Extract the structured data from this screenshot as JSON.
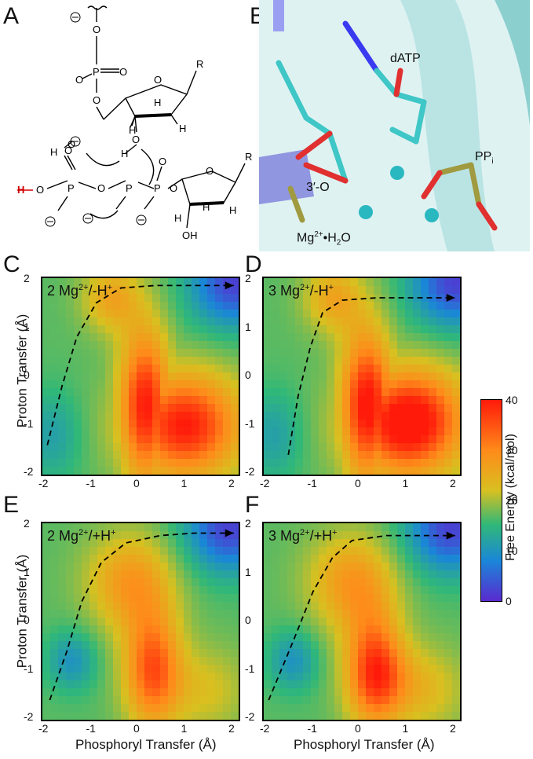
{
  "panels": {
    "A": {
      "letter": "A"
    },
    "B": {
      "letter": "B",
      "labels": {
        "datp": "dATP",
        "ppi": "PP",
        "ppi_sub": "i",
        "o3": "3′-O",
        "mg_water": "Mg",
        "mg_sup": "2+",
        "mg_tail": "•H",
        "mg_sub": "2",
        "mg_end": "O"
      }
    },
    "C": {
      "letter": "C",
      "title": "2 Mg",
      "title_sup": "2+",
      "title_tail": "/-H",
      "title_sup2": "+"
    },
    "D": {
      "letter": "D",
      "title": "3 Mg",
      "title_sup": "2+",
      "title_tail": "/-H",
      "title_sup2": "+"
    },
    "E": {
      "letter": "E",
      "title": "2 Mg",
      "title_sup": "2+",
      "title_tail": "/+H",
      "title_sup2": "+"
    },
    "F": {
      "letter": "F",
      "title": "3 Mg",
      "title_sup": "2+",
      "title_tail": "/+H",
      "title_sup2": "+"
    }
  },
  "axes": {
    "ylabel": "Proton Transfer (Å)",
    "xlabel": "Phosphoryl Transfer (Å)",
    "yticks": [
      "2",
      "1",
      "0",
      "-1",
      "-2"
    ],
    "xticks": [
      "-2",
      "-1",
      "0",
      "1",
      "2"
    ]
  },
  "colorbar": {
    "label": "Free Energy (kcal/mol)",
    "ticks": [
      "40",
      "30",
      "20",
      "10",
      "0"
    ],
    "colors": [
      "#ff1a0a",
      "#ff8a1a",
      "#d8c020",
      "#30b878",
      "#1a86d8",
      "#5a2ad0"
    ]
  },
  "chart_data": [
    {
      "type": "heatmap",
      "panel": "C",
      "xlim": [
        -2,
        2
      ],
      "ylim": [
        -2,
        2
      ],
      "zlim": [
        0,
        40
      ],
      "path_x": [
        -1.9,
        -1.6,
        -1.3,
        -0.9,
        -0.4,
        0.3,
        1.0,
        1.9
      ],
      "path_y": [
        -1.4,
        -0.2,
        0.8,
        1.5,
        1.8,
        1.85,
        1.85,
        1.85
      ]
    },
    {
      "type": "heatmap",
      "panel": "D",
      "xlim": [
        -2,
        2
      ],
      "ylim": [
        -2,
        2
      ],
      "zlim": [
        0,
        40
      ],
      "path_x": [
        -1.5,
        -1.3,
        -1.05,
        -0.8,
        -0.4,
        0.3,
        1.0,
        1.9
      ],
      "path_y": [
        -1.6,
        -0.4,
        0.6,
        1.3,
        1.55,
        1.6,
        1.6,
        1.6
      ]
    },
    {
      "type": "heatmap",
      "panel": "E",
      "xlim": [
        -2,
        2
      ],
      "ylim": [
        -2,
        2
      ],
      "zlim": [
        0,
        40
      ],
      "path_x": [
        -1.85,
        -1.5,
        -1.2,
        -0.8,
        -0.3,
        0.4,
        1.1,
        1.9
      ],
      "path_y": [
        -1.6,
        -0.6,
        0.4,
        1.2,
        1.6,
        1.75,
        1.8,
        1.8
      ]
    },
    {
      "type": "heatmap",
      "panel": "F",
      "xlim": [
        -2,
        2
      ],
      "ylim": [
        -2,
        2
      ],
      "zlim": [
        0,
        40
      ],
      "path_x": [
        -1.9,
        -1.4,
        -1.0,
        -0.6,
        -0.2,
        0.5,
        1.2,
        1.9
      ],
      "path_y": [
        -1.6,
        -0.4,
        0.6,
        1.3,
        1.65,
        1.75,
        1.75,
        1.75
      ]
    }
  ]
}
